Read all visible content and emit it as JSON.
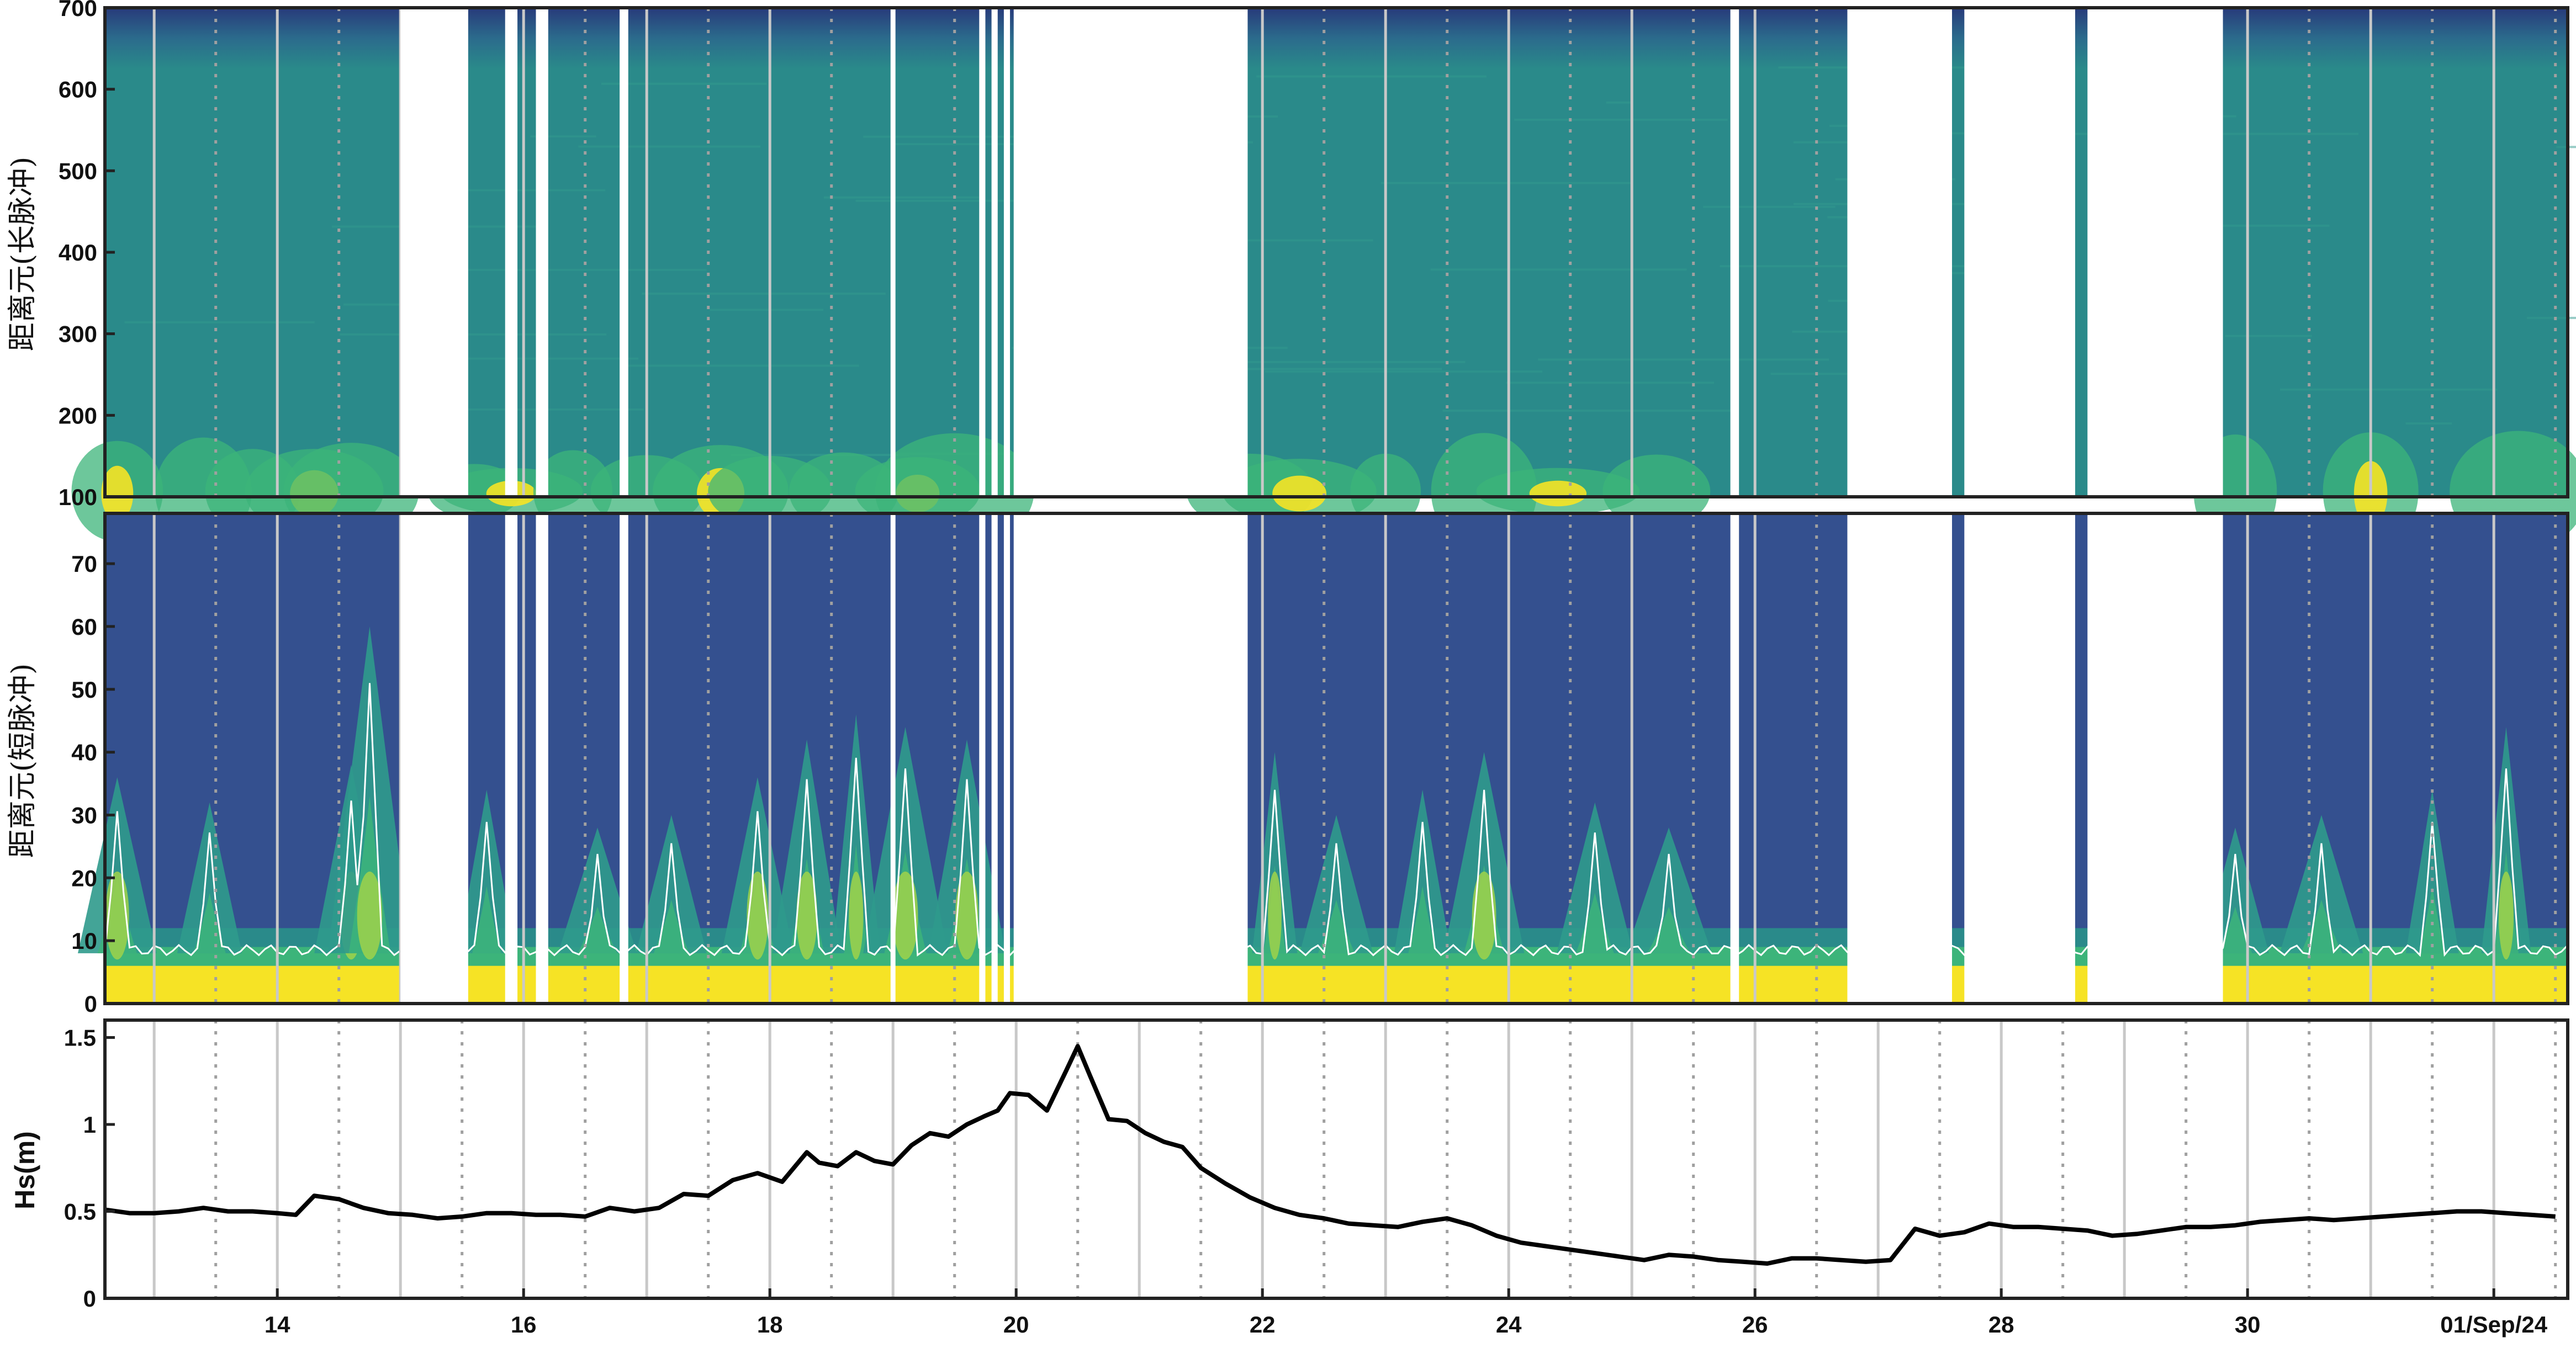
{
  "colors": {
    "bg_dark": "#34508f",
    "teal": "#2a8a8a",
    "teal_light": "#2f9a8c",
    "green": "#3cb47a",
    "lime": "#9fd24a",
    "yellow": "#f6e325",
    "contour": "#ffffff",
    "line": "#000000",
    "grid_major": "#c8c8c8",
    "grid_minor": "#a0a0a0"
  },
  "chart_data": [
    {
      "type": "heatmap",
      "name": "long-pulse",
      "ylabel": "距离元(长脉冲)",
      "ylim": [
        100,
        700
      ],
      "yticks": [
        100,
        200,
        300,
        400,
        500,
        600,
        700
      ],
      "xlim": [
        12.6,
        32.6
      ],
      "gaps": [
        [
          15.0,
          15.55
        ],
        [
          15.85,
          15.95
        ],
        [
          16.1,
          16.2
        ],
        [
          16.78,
          16.85
        ],
        [
          18.98,
          19.02
        ],
        [
          19.7,
          19.75
        ],
        [
          19.8,
          19.85
        ],
        [
          19.9,
          19.95
        ],
        [
          19.98,
          21.88
        ],
        [
          25.8,
          25.87
        ],
        [
          26.75,
          27.6
        ],
        [
          27.7,
          28.6
        ],
        [
          28.7,
          29.8
        ]
      ],
      "data_gaps_note": ""
    },
    {
      "type": "heatmap",
      "name": "short-pulse",
      "ylabel": "距离元(短脉冲)",
      "ylim": [
        0,
        78
      ],
      "yticks": [
        0,
        10,
        20,
        30,
        40,
        50,
        60,
        70
      ],
      "xlim": [
        12.6,
        32.6
      ]
    },
    {
      "type": "line",
      "name": "hs",
      "ylabel": "Hs(m)",
      "ylim": [
        0,
        1.6
      ],
      "yticks": [
        0,
        0.5,
        1,
        1.5
      ],
      "ytick_labels": [
        "0",
        "0.5",
        "1",
        "1.5"
      ],
      "xlim": [
        12.6,
        32.6
      ],
      "xticks": [
        14,
        16,
        18,
        20,
        22,
        24,
        26,
        28,
        30,
        32
      ],
      "xtick_labels": [
        "14",
        "16",
        "18",
        "20",
        "22",
        "24",
        "26",
        "28",
        "30",
        "01/Sep/24"
      ],
      "grid": true,
      "x": [
        12.6,
        12.8,
        13.0,
        13.2,
        13.4,
        13.6,
        13.8,
        14.0,
        14.15,
        14.3,
        14.5,
        14.7,
        14.9,
        15.1,
        15.3,
        15.5,
        15.7,
        15.9,
        16.1,
        16.3,
        16.5,
        16.7,
        16.9,
        17.1,
        17.3,
        17.5,
        17.7,
        17.9,
        18.1,
        18.3,
        18.4,
        18.55,
        18.7,
        18.85,
        19.0,
        19.15,
        19.3,
        19.45,
        19.6,
        19.75,
        19.85,
        19.95,
        20.1,
        20.25,
        20.4,
        20.5,
        20.6,
        20.75,
        20.9,
        21.05,
        21.2,
        21.35,
        21.5,
        21.7,
        21.9,
        22.1,
        22.3,
        22.5,
        22.7,
        22.9,
        23.1,
        23.3,
        23.5,
        23.7,
        23.9,
        24.1,
        24.3,
        24.5,
        24.7,
        24.9,
        25.1,
        25.3,
        25.5,
        25.7,
        25.9,
        26.1,
        26.3,
        26.5,
        26.7,
        26.9,
        27.1,
        27.3,
        27.5,
        27.7,
        27.9,
        28.1,
        28.3,
        28.5,
        28.7,
        28.9,
        29.1,
        29.3,
        29.5,
        29.7,
        29.9,
        30.1,
        30.3,
        30.5,
        30.7,
        30.9,
        31.1,
        31.3,
        31.5,
        31.7,
        31.9,
        32.1,
        32.3,
        32.5
      ],
      "y": [
        0.51,
        0.49,
        0.49,
        0.5,
        0.52,
        0.5,
        0.5,
        0.49,
        0.48,
        0.59,
        0.57,
        0.52,
        0.49,
        0.48,
        0.46,
        0.47,
        0.49,
        0.49,
        0.48,
        0.48,
        0.47,
        0.52,
        0.5,
        0.52,
        0.6,
        0.59,
        0.68,
        0.72,
        0.67,
        0.84,
        0.78,
        0.76,
        0.84,
        0.79,
        0.77,
        0.88,
        0.95,
        0.93,
        1.0,
        1.05,
        1.08,
        1.18,
        1.17,
        1.08,
        1.3,
        1.45,
        1.28,
        1.03,
        1.02,
        0.95,
        0.9,
        0.87,
        0.75,
        0.66,
        0.58,
        0.52,
        0.48,
        0.46,
        0.43,
        0.42,
        0.41,
        0.44,
        0.46,
        0.42,
        0.36,
        0.32,
        0.3,
        0.28,
        0.26,
        0.24,
        0.22,
        0.25,
        0.24,
        0.22,
        0.21,
        0.2,
        0.23,
        0.23,
        0.22,
        0.21,
        0.22,
        0.4,
        0.36,
        0.38,
        0.43,
        0.41,
        0.41,
        0.4,
        0.39,
        0.36,
        0.37,
        0.39,
        0.41,
        0.41,
        0.42,
        0.44,
        0.45,
        0.46,
        0.45,
        0.46,
        0.47,
        0.48,
        0.49,
        0.5,
        0.5,
        0.49,
        0.48,
        0.47
      ]
    }
  ]
}
